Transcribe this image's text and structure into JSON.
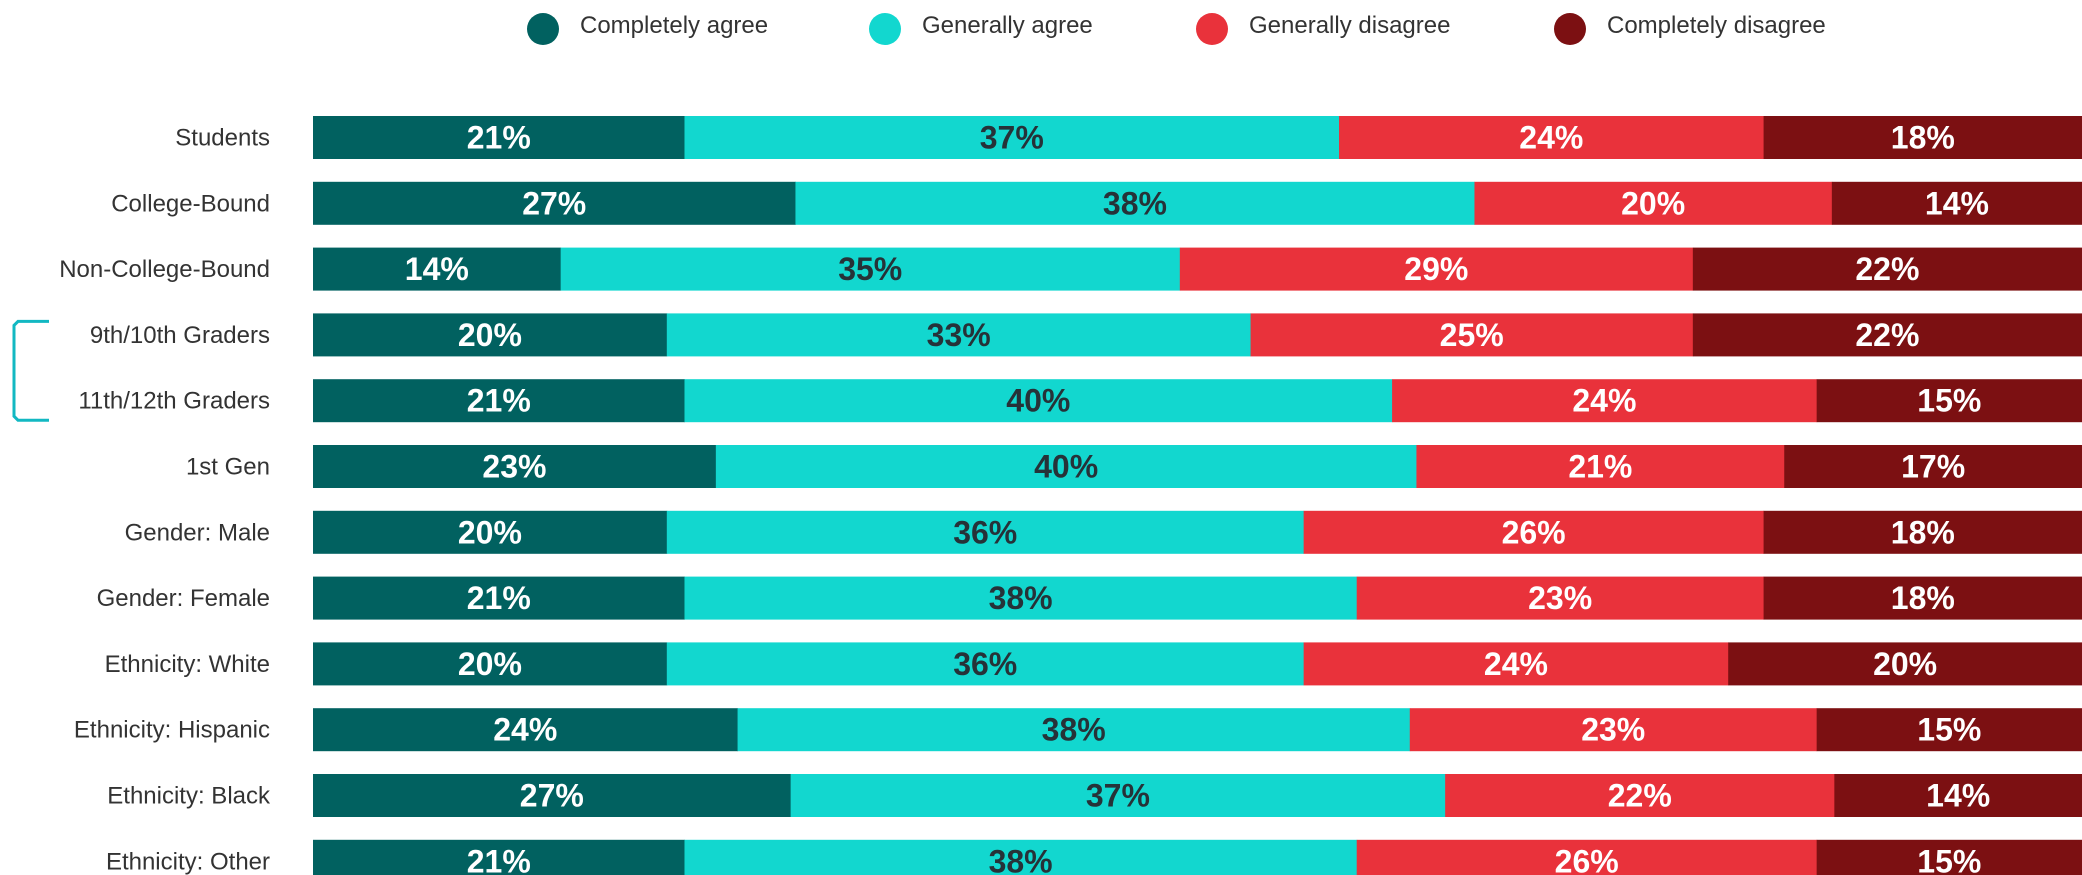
{
  "chart_data": {
    "type": "bar",
    "orientation": "horizontal",
    "stacked": true,
    "title": "",
    "xlabel": "",
    "ylabel": "",
    "xlim": [
      0,
      100
    ],
    "grid": false,
    "legend_position": "top",
    "categories": [
      "Students",
      "College-Bound",
      "Non-College-Bound",
      "9th/10th Graders",
      "11th/12th Graders",
      "1st Gen",
      "Gender: Male",
      "Gender: Female",
      "Ethnicity: White",
      "Ethnicity: Hispanic",
      "Ethnicity: Black",
      "Ethnicity: Other"
    ],
    "series": [
      {
        "name": "Completely agree",
        "color": "#016160",
        "label_color": "#ffffff",
        "values": [
          21,
          27,
          14,
          20,
          21,
          23,
          20,
          21,
          20,
          24,
          27,
          21
        ]
      },
      {
        "name": "Generally agree",
        "color": "#12d7cf",
        "label_color": "#263238",
        "values": [
          37,
          38,
          35,
          33,
          40,
          40,
          36,
          38,
          36,
          38,
          37,
          38
        ]
      },
      {
        "name": "Generally disagree",
        "color": "#e9323b",
        "label_color": "#ffffff",
        "values": [
          24,
          20,
          29,
          25,
          24,
          21,
          26,
          23,
          24,
          23,
          22,
          26
        ]
      },
      {
        "name": "Completely disagree",
        "color": "#7c1012",
        "label_color": "#ffffff",
        "values": [
          18,
          14,
          22,
          22,
          15,
          17,
          18,
          18,
          20,
          15,
          14,
          15
        ]
      }
    ],
    "value_suffix": "%",
    "bracket_groups": [
      {
        "from": "9th/10th Graders",
        "to": "11th/12th Graders",
        "color": "#12b8c2"
      }
    ]
  }
}
